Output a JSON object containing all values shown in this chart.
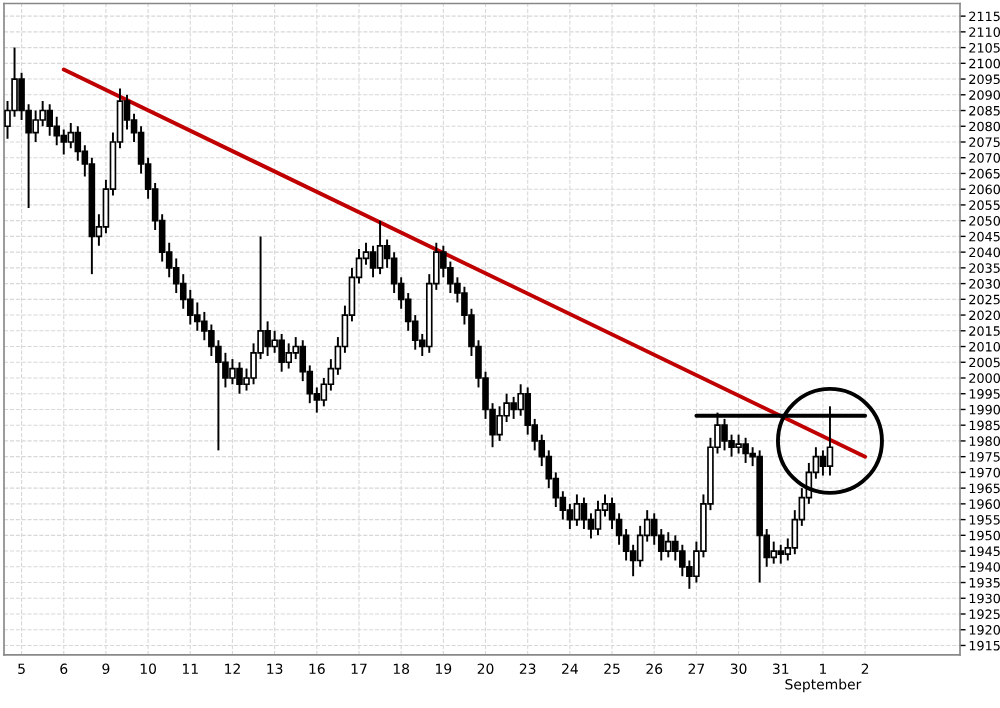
{
  "chart_data": {
    "type": "candlestick",
    "categories": [
      null,
      null,
      "5",
      null,
      null,
      null,
      null,
      null,
      "6",
      null,
      null,
      null,
      null,
      null,
      "9",
      null,
      null,
      null,
      null,
      null,
      "10",
      null,
      null,
      null,
      null,
      null,
      "11",
      null,
      null,
      null,
      null,
      null,
      "12",
      null,
      null,
      null,
      null,
      null,
      "13",
      null,
      null,
      null,
      null,
      null,
      "16",
      null,
      null,
      null,
      null,
      null,
      "17",
      null,
      null,
      null,
      null,
      null,
      "18",
      null,
      null,
      null,
      null,
      null,
      "19",
      null,
      null,
      null,
      null,
      null,
      "20",
      null,
      null,
      null,
      null,
      null,
      "23",
      null,
      null,
      null,
      null,
      null,
      "24",
      null,
      null,
      null,
      null,
      null,
      "25",
      null,
      null,
      null,
      null,
      null,
      "26",
      null,
      null,
      null,
      null,
      null,
      "27",
      null,
      null,
      null,
      null,
      null,
      "30",
      null,
      null,
      null,
      null,
      null,
      "31",
      null,
      null,
      null,
      null,
      null,
      "1\nSeptember",
      null,
      null,
      null,
      null,
      null,
      "2",
      null,
      null,
      null,
      null,
      null,
      null,
      null,
      null,
      null,
      null,
      null,
      null,
      null
    ],
    "ohlc": [
      [
        2080,
        2088,
        2076,
        2085
      ],
      [
        2085,
        2105,
        2083,
        2095
      ],
      [
        2095,
        2097,
        2082,
        2085
      ],
      [
        2085,
        2087,
        2054,
        2078
      ],
      [
        2078,
        2085,
        2075,
        2082
      ],
      [
        2082,
        2088,
        2080,
        2085
      ],
      [
        2085,
        2087,
        2077,
        2080
      ],
      [
        2080,
        2083,
        2074,
        2077
      ],
      [
        2077,
        2079,
        2071,
        2075
      ],
      [
        2075,
        2081,
        2073,
        2078
      ],
      [
        2078,
        2080,
        2069,
        2072
      ],
      [
        2072,
        2074,
        2064,
        2068
      ],
      [
        2068,
        2070,
        2033,
        2045
      ],
      [
        2045,
        2052,
        2042,
        2048
      ],
      [
        2048,
        2063,
        2046,
        2060
      ],
      [
        2060,
        2078,
        2058,
        2075
      ],
      [
        2075,
        2092,
        2073,
        2088
      ],
      [
        2088,
        2090,
        2079,
        2082
      ],
      [
        2082,
        2084,
        2075,
        2078
      ],
      [
        2078,
        2080,
        2065,
        2068
      ],
      [
        2068,
        2070,
        2057,
        2060
      ],
      [
        2060,
        2062,
        2047,
        2050
      ],
      [
        2050,
        2052,
        2037,
        2040
      ],
      [
        2040,
        2043,
        2032,
        2035
      ],
      [
        2035,
        2038,
        2027,
        2030
      ],
      [
        2030,
        2033,
        2022,
        2025
      ],
      [
        2025,
        2028,
        2017,
        2020
      ],
      [
        2020,
        2024,
        2015,
        2018
      ],
      [
        2018,
        2021,
        2012,
        2015
      ],
      [
        2015,
        2017,
        2007,
        2010
      ],
      [
        2010,
        2012,
        1977,
        2005
      ],
      [
        2005,
        2008,
        1997,
        2000
      ],
      [
        2000,
        2006,
        1998,
        2003
      ],
      [
        2003,
        2005,
        1995,
        1998
      ],
      [
        1998,
        2003,
        1996,
        2000
      ],
      [
        2000,
        2011,
        1998,
        2008
      ],
      [
        2008,
        2045,
        2006,
        2015
      ],
      [
        2015,
        2018,
        2007,
        2010
      ],
      [
        2010,
        2015,
        2008,
        2012
      ],
      [
        2012,
        2014,
        2002,
        2005
      ],
      [
        2005,
        2011,
        2003,
        2008
      ],
      [
        2008,
        2013,
        2006,
        2010
      ],
      [
        2010,
        2012,
        1999,
        2002
      ],
      [
        2002,
        2004,
        1992,
        1995
      ],
      [
        1995,
        1997,
        1989,
        1993
      ],
      [
        1993,
        2000,
        1991,
        1998
      ],
      [
        1998,
        2006,
        1996,
        2003
      ],
      [
        2003,
        2013,
        2001,
        2010
      ],
      [
        2010,
        2023,
        2008,
        2020
      ],
      [
        2020,
        2035,
        2018,
        2032
      ],
      [
        2032,
        2041,
        2030,
        2038
      ],
      [
        2038,
        2043,
        2036,
        2040
      ],
      [
        2040,
        2042,
        2032,
        2035
      ],
      [
        2035,
        2050,
        2033,
        2042
      ],
      [
        2042,
        2044,
        2035,
        2038
      ],
      [
        2038,
        2040,
        2027,
        2030
      ],
      [
        2030,
        2032,
        2022,
        2025
      ],
      [
        2025,
        2027,
        2015,
        2018
      ],
      [
        2018,
        2020,
        2009,
        2012
      ],
      [
        2012,
        2014,
        2007,
        2010
      ],
      [
        2010,
        2033,
        2008,
        2030
      ],
      [
        2030,
        2043,
        2028,
        2040
      ],
      [
        2040,
        2042,
        2032,
        2035
      ],
      [
        2035,
        2037,
        2027,
        2030
      ],
      [
        2030,
        2032,
        2024,
        2027
      ],
      [
        2027,
        2029,
        2017,
        2020
      ],
      [
        2020,
        2022,
        2007,
        2010
      ],
      [
        2010,
        2012,
        1997,
        2000
      ],
      [
        2000,
        2002,
        1987,
        1990
      ],
      [
        1990,
        1992,
        1978,
        1982
      ],
      [
        1982,
        1991,
        1980,
        1988
      ],
      [
        1988,
        1995,
        1986,
        1992
      ],
      [
        1992,
        1994,
        1987,
        1990
      ],
      [
        1990,
        1998,
        1988,
        1995
      ],
      [
        1995,
        1997,
        1982,
        1985
      ],
      [
        1985,
        1987,
        1977,
        1980
      ],
      [
        1980,
        1982,
        1972,
        1975
      ],
      [
        1975,
        1977,
        1965,
        1968
      ],
      [
        1968,
        1970,
        1959,
        1962
      ],
      [
        1962,
        1964,
        1955,
        1958
      ],
      [
        1958,
        1960,
        1952,
        1955
      ],
      [
        1955,
        1963,
        1953,
        1960
      ],
      [
        1960,
        1962,
        1952,
        1955
      ],
      [
        1955,
        1957,
        1949,
        1952
      ],
      [
        1952,
        1961,
        1950,
        1958
      ],
      [
        1958,
        1963,
        1956,
        1960
      ],
      [
        1960,
        1962,
        1952,
        1955
      ],
      [
        1955,
        1957,
        1947,
        1950
      ],
      [
        1950,
        1952,
        1942,
        1945
      ],
      [
        1945,
        1947,
        1937,
        1942
      ],
      [
        1942,
        1953,
        1940,
        1950
      ],
      [
        1950,
        1958,
        1948,
        1955
      ],
      [
        1955,
        1957,
        1947,
        1950
      ],
      [
        1950,
        1952,
        1942,
        1945
      ],
      [
        1945,
        1951,
        1943,
        1948
      ],
      [
        1948,
        1950,
        1942,
        1945
      ],
      [
        1945,
        1947,
        1937,
        1940
      ],
      [
        1940,
        1942,
        1933,
        1937
      ],
      [
        1937,
        1948,
        1935,
        1945
      ],
      [
        1945,
        1963,
        1943,
        1960
      ],
      [
        1960,
        1981,
        1958,
        1978
      ],
      [
        1978,
        1989,
        1976,
        1985
      ],
      [
        1985,
        1987,
        1977,
        1980
      ],
      [
        1980,
        1982,
        1975,
        1978
      ],
      [
        1978,
        1982,
        1976,
        1979
      ],
      [
        1979,
        1981,
        1973,
        1976
      ],
      [
        1976,
        1978,
        1972,
        1975
      ],
      [
        1975,
        1977,
        1935,
        1950
      ],
      [
        1950,
        1952,
        1940,
        1943
      ],
      [
        1943,
        1948,
        1941,
        1945
      ],
      [
        1945,
        1947,
        1941,
        1944
      ],
      [
        1944,
        1949,
        1942,
        1946
      ],
      [
        1946,
        1958,
        1944,
        1955
      ],
      [
        1955,
        1965,
        1953,
        1962
      ],
      [
        1962,
        1973,
        1960,
        1970
      ],
      [
        1970,
        1978,
        1968,
        1975
      ],
      [
        1975,
        1977,
        1969,
        1972
      ],
      [
        1972,
        1991,
        1969,
        1978
      ],
      null,
      null,
      null,
      null,
      null,
      null,
      null,
      null,
      null,
      null,
      null,
      null,
      null,
      null,
      null,
      null,
      null,
      null
    ],
    "series": [
      {
        "type": "line",
        "x": [
          "6",
          "2"
        ],
        "values": [
          2098,
          1975
        ],
        "color": "#c00000"
      },
      {
        "type": "line",
        "x": [
          "27",
          "2"
        ],
        "values": [
          1988,
          1988
        ],
        "color": "#000000"
      }
    ],
    "ylim": [
      1912,
      2119
    ],
    "yticks": [
      1915,
      1920,
      1925,
      1930,
      1935,
      1940,
      1945,
      1950,
      1955,
      1960,
      1965,
      1970,
      1975,
      1980,
      1985,
      1990,
      1995,
      2000,
      2005,
      2010,
      2015,
      2020,
      2025,
      2030,
      2035,
      2040,
      2045,
      2050,
      2055,
      2060,
      2065,
      2070,
      2075,
      2080,
      2085,
      2090,
      2095,
      2100,
      2105,
      2110,
      2115
    ],
    "grid": true
  }
}
